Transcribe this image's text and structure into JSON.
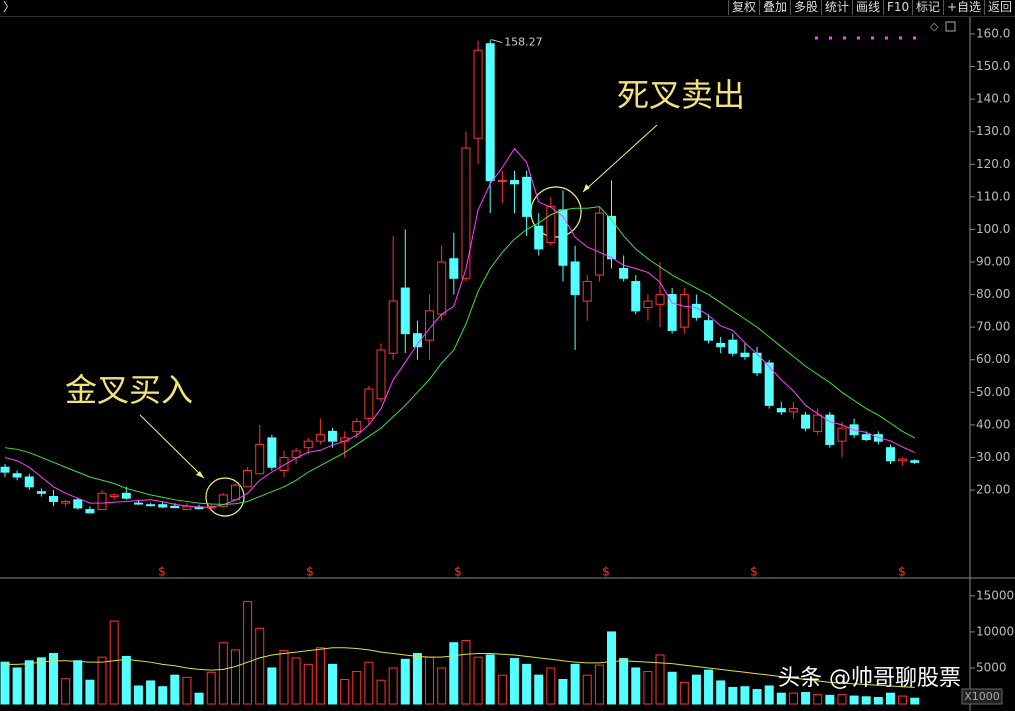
{
  "toolbar": {
    "back_arrow": "〉",
    "buttons": [
      "复权",
      "叠加",
      "多股",
      "统计",
      "画线",
      "F10",
      "标记",
      "+自选",
      "返回"
    ]
  },
  "chart_data": {
    "type": "candlestick",
    "categories": [
      null,
      null,
      null,
      null,
      null,
      null,
      null,
      null,
      null,
      null,
      null,
      null,
      null,
      null,
      null,
      null,
      null,
      null,
      null,
      null,
      null,
      null,
      null,
      null,
      null,
      null,
      null,
      null,
      null,
      null,
      null,
      null,
      null,
      null,
      null,
      null,
      null,
      null,
      null,
      null,
      null,
      null,
      null,
      null,
      null,
      null,
      null,
      null,
      null,
      null,
      null,
      null,
      null,
      null,
      null,
      null,
      null,
      null,
      null,
      null,
      null,
      null,
      null,
      null,
      null,
      null,
      null,
      null,
      null,
      null,
      null,
      null,
      null,
      null,
      null,
      null
    ],
    "open": [
      27,
      25,
      24,
      19.5,
      18,
      16,
      17,
      14,
      14,
      18,
      19,
      16,
      15.5,
      15.5,
      15,
      14,
      14.8,
      14.5,
      15,
      17,
      21,
      25,
      36,
      26,
      30,
      33,
      35,
      38,
      35,
      38,
      42,
      48,
      62,
      82,
      68,
      66,
      74,
      91,
      85,
      128,
      157,
      115,
      115,
      116,
      101,
      96,
      106,
      90,
      78,
      86,
      104,
      88,
      84,
      76,
      77,
      80,
      70,
      77,
      72,
      65,
      66,
      62,
      62,
      59,
      45,
      44,
      43,
      38,
      43,
      35,
      40,
      37,
      37,
      33,
      29,
      29
    ],
    "high": [
      28,
      26,
      25,
      20.5,
      20,
      17,
      17.5,
      15,
      20,
      19,
      21,
      17,
      16,
      16.5,
      16,
      16,
      15.5,
      15.5,
      19,
      22,
      27,
      40,
      37,
      32,
      33,
      36,
      42,
      39,
      38,
      42,
      52,
      65,
      98,
      100,
      72,
      80,
      95,
      99,
      130,
      158,
      158.27,
      118,
      118,
      118,
      105,
      110,
      112,
      95,
      86,
      107,
      115,
      92,
      86,
      80,
      90,
      82,
      82,
      80,
      74,
      67,
      68,
      65,
      64,
      60,
      47,
      47,
      44,
      45,
      44,
      41,
      42,
      38,
      38,
      34,
      30,
      29.5
    ],
    "low": [
      24,
      23,
      20,
      18,
      15,
      15,
      14,
      13,
      14,
      17,
      17,
      15.5,
      15,
      14.5,
      14.5,
      14,
      14,
      14,
      15,
      17,
      21,
      25,
      26,
      24,
      28,
      31,
      34,
      33,
      30,
      36,
      40,
      47,
      60,
      62,
      60,
      60,
      72,
      80,
      84,
      120,
      105,
      108,
      105,
      98,
      92,
      95,
      84,
      63,
      72,
      84,
      88,
      84,
      74,
      72,
      70,
      68,
      68,
      72,
      65,
      62,
      61,
      60,
      55,
      45,
      43,
      42,
      38,
      37,
      33,
      30,
      36,
      35,
      34,
      28,
      27.5,
      28
    ],
    "close": [
      25.5,
      24,
      21,
      19,
      16.5,
      16.5,
      14.5,
      13,
      19,
      18.5,
      17.5,
      15.8,
      15.2,
      14.8,
      14.6,
      15,
      14.3,
      15,
      18.5,
      21.5,
      26,
      34,
      27,
      30,
      32,
      35,
      37,
      35,
      36,
      41,
      51,
      63,
      78,
      68,
      64,
      75,
      90,
      85,
      125,
      155,
      115,
      115,
      114,
      104,
      94,
      107,
      89,
      80,
      84,
      105,
      91,
      85,
      75,
      78,
      80,
      69,
      80,
      73,
      66,
      64,
      62,
      61,
      56,
      46,
      44,
      45,
      39,
      43,
      34,
      39,
      37,
      35.5,
      35,
      29,
      29.5,
      28.5
    ],
    "up_color": "#ff3232",
    "down_color": "#54ffff",
    "series": [
      {
        "color": "#ff40ff",
        "values": [
          30,
          29,
          27,
          24,
          21,
          19,
          17.5,
          16,
          16,
          16.3,
          16.5,
          16.8,
          17,
          16.4,
          15.6,
          15.1,
          14.8,
          14.7,
          15.5,
          16.9,
          19,
          23,
          25.5,
          27.7,
          29.8,
          31.6,
          32.2,
          33.8,
          35,
          36.8,
          40,
          45,
          53.8,
          59.2,
          64.8,
          69.6,
          74,
          76.4,
          87.8,
          106,
          114,
          119,
          124.8,
          120.6,
          108.4,
          106.8,
          104,
          97.6,
          94.6,
          93,
          91.4,
          89,
          88,
          86.8,
          83.8,
          77.4,
          76.4,
          76,
          73.6,
          70.4,
          69,
          65.2,
          61.8,
          57.8,
          53.8,
          50.4,
          46,
          43.4,
          41,
          40,
          38.4,
          37.7,
          36.1,
          35.1,
          33.2,
          31.5
        ]
      },
      {
        "color": "#40e040",
        "values": [
          33,
          32.5,
          31.5,
          30,
          28.5,
          27,
          25.5,
          24,
          23,
          22,
          20.5,
          19.5,
          18.5,
          17.8,
          17,
          16.5,
          16,
          15.7,
          15.6,
          15.8,
          16.5,
          18,
          19.5,
          21,
          23,
          25.5,
          27.5,
          29.5,
          31.5,
          34,
          36.5,
          39,
          42.5,
          46,
          50,
          54,
          59,
          63,
          71,
          81,
          88,
          93,
          97,
          100,
          102,
          104.5,
          106,
          106.5,
          106.5,
          107,
          103,
          98,
          94,
          91,
          88.5,
          86,
          84,
          82,
          80,
          77.5,
          75,
          72.5,
          70,
          67,
          64,
          61,
          58,
          55.5,
          53,
          50,
          47.5,
          45,
          43,
          40.5,
          38,
          36
        ]
      }
    ],
    "ylim": [
      -7,
      165.2
    ],
    "yticks": [
      {
        "value": 20,
        "label": "20.00"
      },
      {
        "value": 30,
        "label": "30.00"
      },
      {
        "value": 40,
        "label": "40.00"
      },
      {
        "value": 50,
        "label": "50.00"
      },
      {
        "value": 60,
        "label": "60.00"
      },
      {
        "value": 70,
        "label": "70.00"
      },
      {
        "value": 80,
        "label": "80.00"
      },
      {
        "value": 90,
        "label": "90.00"
      },
      {
        "value": 100,
        "label": "100.0"
      },
      {
        "value": 110,
        "label": "110.0"
      },
      {
        "value": 120,
        "label": "120.0"
      },
      {
        "value": 130,
        "label": "130.0"
      },
      {
        "value": 140,
        "label": "140.0"
      },
      {
        "value": 150,
        "label": "150.0"
      },
      {
        "value": 160,
        "label": "160.0"
      }
    ],
    "annotations": [
      "金叉买入",
      "死叉卖出"
    ],
    "markers": [
      "$",
      "$",
      "$",
      "$",
      "$",
      "$"
    ],
    "volume": {
      "values": [
        5800,
        5000,
        6000,
        6400,
        7000,
        3500,
        6000,
        3300,
        6500,
        11500,
        6600,
        2500,
        3200,
        2400,
        4000,
        3700,
        1500,
        4400,
        8500,
        7500,
        14200,
        10500,
        5000,
        7400,
        6400,
        5500,
        7800,
        5500,
        3400,
        4500,
        5800,
        3300,
        5000,
        6200,
        7000,
        6500,
        5000,
        8500,
        8800,
        6500,
        6800,
        4000,
        6300,
        5500,
        4000,
        5000,
        3400,
        5500,
        4000,
        5400,
        10000,
        6300,
        5000,
        4500,
        6800,
        4400,
        3000,
        4000,
        4700,
        3200,
        2300,
        2400,
        2000,
        2500,
        1500,
        1500,
        1600,
        1300,
        1200,
        1300,
        1100,
        1000,
        900,
        1500,
        1100,
        800
      ],
      "ma": {
        "color": "#e0e040",
        "values": [
          5500,
          5500,
          5600,
          5800,
          6000,
          6000,
          5900,
          5800,
          5800,
          6000,
          6200,
          6000,
          5800,
          5500,
          5300,
          5000,
          4800,
          4700,
          4800,
          5200,
          5800,
          6400,
          6800,
          7000,
          7200,
          7400,
          7600,
          7800,
          7800,
          7700,
          7500,
          7200,
          7000,
          6800,
          6600,
          6500,
          6500,
          6700,
          6900,
          7000,
          7000,
          6900,
          6800,
          6600,
          6400,
          6200,
          6000,
          5800,
          5700,
          5700,
          5900,
          6000,
          5900,
          5800,
          5700,
          5600,
          5400,
          5200,
          5000,
          4800,
          4600,
          4400,
          4200,
          4000,
          3800,
          3600,
          3400,
          3200,
          3000,
          2900,
          2800,
          2700,
          2600,
          2500,
          2400,
          2300
        ]
      },
      "ylim": [
        0,
        17200
      ],
      "yticks": [
        5000,
        10000,
        15000
      ],
      "unit_label": "X1000"
    }
  },
  "watermark": "头条 @帅哥聊股票"
}
